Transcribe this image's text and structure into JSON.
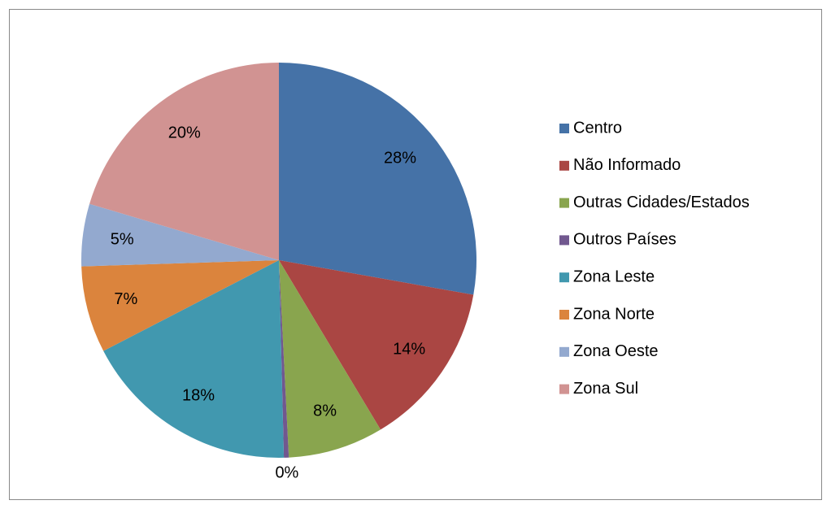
{
  "chart_data": {
    "type": "pie",
    "categories": [
      "Centro",
      "Não Informado",
      "Outras Cidades/Estados",
      "Outros Países",
      "Zona Leste",
      "Zona Norte",
      "Zona Oeste",
      "Zona Sul"
    ],
    "values": [
      27.8,
      13.6,
      7.8,
      0.4,
      17.8,
      7.1,
      5.1,
      20.4
    ],
    "value_labels": [
      "28%",
      "14%",
      "8%",
      "0%",
      "18%",
      "7%",
      "5%",
      "20%"
    ],
    "colors": [
      "#4572a7",
      "#aa4643",
      "#89a54e",
      "#71588f",
      "#4198af",
      "#db843d",
      "#93a9cf",
      "#d19392"
    ],
    "legend": "right"
  }
}
